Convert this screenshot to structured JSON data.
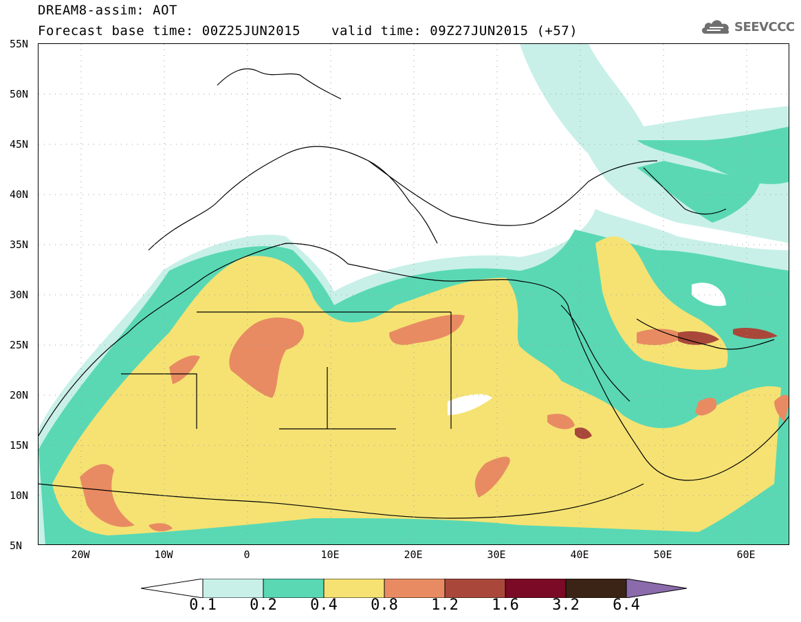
{
  "header": {
    "model_title": "DREAM8-assim: AOT",
    "base_time": "Forecast base time: 00Z25JUN2015",
    "valid_time": "valid time: 09Z27JUN2015 (+57)",
    "logo_text": "SEEVCCC"
  },
  "map": {
    "lat_labels": [
      "55N",
      "50N",
      "45N",
      "40N",
      "35N",
      "30N",
      "25N",
      "20N",
      "15N",
      "10N",
      "5N"
    ],
    "lon_labels": [
      "20W",
      "10W",
      "0",
      "10E",
      "20E",
      "30E",
      "40E",
      "50E",
      "60E"
    ],
    "lon_range": [
      -25,
      65
    ],
    "lat_range": [
      5,
      55
    ]
  },
  "colorbar": {
    "labels": [
      "0.1",
      "0.2",
      "0.4",
      "0.8",
      "1.2",
      "1.6",
      "3.2",
      "6.4"
    ],
    "colors": [
      "#ffffff",
      "#c8f0e8",
      "#5ad8b4",
      "#f5e273",
      "#e88b62",
      "#a9483a",
      "#7a0a25",
      "#3b2415",
      "#8b6bab"
    ]
  }
}
